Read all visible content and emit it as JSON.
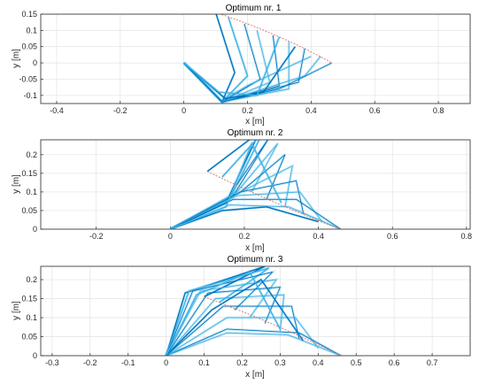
{
  "colors": {
    "background": "#ffffff",
    "axes_frame": "#262626",
    "grid": "#e3e3e3",
    "links": "#0072bd",
    "light_links": "#3fb4e6",
    "path": "#e07060"
  },
  "chart_data": [
    {
      "type": "line",
      "title": "Optimum nr. 1",
      "xlabel": "x [m]",
      "ylabel": "y [m]",
      "xlim": [
        -0.45,
        0.9
      ],
      "ylim": [
        -0.125,
        0.15
      ],
      "xticks": [
        -0.4,
        -0.2,
        0,
        0.2,
        0.4,
        0.6,
        0.8
      ],
      "xtick_labels": [
        "-0.4",
        "-0.2",
        "0",
        "0.2",
        "0.4",
        "0.6",
        "0.8"
      ],
      "yticks": [
        0.15,
        0.1,
        0.05,
        0,
        -0.05,
        -0.1
      ],
      "ytick_labels": [
        "0.15",
        "0.1",
        "0.05",
        "0",
        "-0.05",
        "-0.1"
      ],
      "grid": true,
      "path": {
        "start": [
          0.1,
          0.155
        ],
        "end": [
          0.465,
          0.0
        ],
        "ctrl": [
          0.3,
          0.09
        ]
      },
      "polylines": [
        [
          [
            0.0,
            0.0
          ],
          [
            0.12,
            -0.12
          ],
          [
            0.16,
            -0.03
          ],
          [
            0.1,
            0.155
          ]
        ],
        [
          [
            0.0,
            0.0
          ],
          [
            0.12,
            -0.12
          ],
          [
            0.2,
            -0.04
          ],
          [
            0.14,
            0.14
          ]
        ],
        [
          [
            0.0,
            0.0
          ],
          [
            0.12,
            -0.12
          ],
          [
            0.24,
            -0.05
          ],
          [
            0.19,
            0.12
          ]
        ],
        [
          [
            0.0,
            0.0
          ],
          [
            0.12,
            -0.12
          ],
          [
            0.27,
            -0.06
          ],
          [
            0.23,
            0.1
          ]
        ],
        [
          [
            0.0,
            0.0
          ],
          [
            0.12,
            -0.12
          ],
          [
            0.3,
            -0.07
          ],
          [
            0.28,
            0.085
          ]
        ],
        [
          [
            0.0,
            0.0
          ],
          [
            0.12,
            -0.12
          ],
          [
            0.33,
            -0.08
          ],
          [
            0.33,
            0.065
          ]
        ],
        [
          [
            0.0,
            0.0
          ],
          [
            0.12,
            -0.12
          ],
          [
            0.36,
            -0.06
          ],
          [
            0.38,
            0.045
          ]
        ],
        [
          [
            0.0,
            0.0
          ],
          [
            0.12,
            -0.12
          ],
          [
            0.38,
            -0.04
          ],
          [
            0.43,
            0.02
          ]
        ],
        [
          [
            0.0,
            0.0
          ],
          [
            0.12,
            -0.12
          ],
          [
            0.3,
            -0.08
          ],
          [
            0.465,
            0.0
          ]
        ],
        [
          [
            0.0,
            0.0
          ],
          [
            0.13,
            -0.11
          ],
          [
            0.2,
            -0.07
          ],
          [
            0.4,
            0.02
          ]
        ],
        [
          [
            0.0,
            0.0
          ],
          [
            0.13,
            -0.11
          ],
          [
            0.25,
            -0.09
          ],
          [
            0.35,
            0.05
          ]
        ],
        [
          [
            0.0,
            0.0
          ],
          [
            0.11,
            -0.09
          ],
          [
            0.23,
            -0.1
          ],
          [
            0.3,
            0.08
          ]
        ]
      ]
    },
    {
      "type": "line",
      "title": "Optimum nr. 2",
      "xlabel": "x [m]",
      "ylabel": "y [m]",
      "xlim": [
        -0.35,
        0.81
      ],
      "ylim": [
        0,
        0.24
      ],
      "xticks": [
        -0.2,
        0,
        0.2,
        0.4,
        0.6,
        0.8
      ],
      "xtick_labels": [
        "-0.2",
        "0",
        "0.2",
        "0.4",
        "0.6",
        "0.8"
      ],
      "yticks": [
        0.2,
        0.15,
        0.1,
        0.05,
        0
      ],
      "ytick_labels": [
        "0.2",
        "0.15",
        "0.1",
        "0.05",
        "0"
      ],
      "grid": true,
      "path": {
        "start": [
          0.1,
          0.155
        ],
        "end": [
          0.46,
          0.0
        ],
        "ctrl": [
          0.3,
          0.06
        ]
      },
      "polylines": [
        [
          [
            0.0,
            0.0
          ],
          [
            0.15,
            0.07
          ],
          [
            0.24,
            0.26
          ],
          [
            0.1,
            0.155
          ]
        ],
        [
          [
            0.0,
            0.0
          ],
          [
            0.16,
            0.08
          ],
          [
            0.25,
            0.26
          ],
          [
            0.14,
            0.14
          ]
        ],
        [
          [
            0.0,
            0.0
          ],
          [
            0.17,
            0.09
          ],
          [
            0.27,
            0.25
          ],
          [
            0.18,
            0.12
          ]
        ],
        [
          [
            0.0,
            0.0
          ],
          [
            0.18,
            0.1
          ],
          [
            0.29,
            0.23
          ],
          [
            0.22,
            0.1
          ]
        ],
        [
          [
            0.0,
            0.0
          ],
          [
            0.19,
            0.1
          ],
          [
            0.31,
            0.2
          ],
          [
            0.26,
            0.08
          ]
        ],
        [
          [
            0.0,
            0.0
          ],
          [
            0.19,
            0.1
          ],
          [
            0.33,
            0.17
          ],
          [
            0.31,
            0.06
          ]
        ],
        [
          [
            0.0,
            0.0
          ],
          [
            0.19,
            0.1
          ],
          [
            0.34,
            0.13
          ],
          [
            0.36,
            0.04
          ]
        ],
        [
          [
            0.0,
            0.0
          ],
          [
            0.18,
            0.09
          ],
          [
            0.35,
            0.1
          ],
          [
            0.41,
            0.02
          ]
        ],
        [
          [
            0.0,
            0.0
          ],
          [
            0.17,
            0.08
          ],
          [
            0.34,
            0.08
          ],
          [
            0.46,
            0.0
          ]
        ],
        [
          [
            0.0,
            0.0
          ],
          [
            0.16,
            0.065
          ],
          [
            0.32,
            0.06
          ],
          [
            0.46,
            0.0
          ]
        ],
        [
          [
            0.0,
            0.0
          ],
          [
            0.14,
            0.05
          ],
          [
            0.26,
            0.06
          ],
          [
            0.4,
            0.02
          ]
        ],
        [
          [
            0.0,
            0.0
          ],
          [
            0.15,
            0.06
          ],
          [
            0.22,
            0.23
          ],
          [
            0.3,
            0.07
          ]
        ]
      ]
    },
    {
      "type": "line",
      "title": "Optimum nr. 3",
      "xlabel": "x [m]",
      "ylabel": "y [m]",
      "xlim": [
        -0.33,
        0.8
      ],
      "ylim": [
        0,
        0.235
      ],
      "xticks": [
        -0.3,
        -0.2,
        -0.1,
        0,
        0.1,
        0.2,
        0.3,
        0.4,
        0.5,
        0.6,
        0.7
      ],
      "xtick_labels": [
        "-0.3",
        "-0.2",
        "-0.1",
        "0",
        "0.1",
        "0.2",
        "0.3",
        "0.4",
        "0.5",
        "0.6",
        "0.7"
      ],
      "yticks": [
        0.2,
        0.15,
        0.1,
        0.05,
        0
      ],
      "ytick_labels": [
        "0.2",
        "0.15",
        "0.1",
        "0.05",
        "0"
      ],
      "grid": true,
      "path": {
        "start": [
          0.1,
          0.155
        ],
        "end": [
          0.46,
          0.0
        ],
        "ctrl": [
          0.3,
          0.08
        ]
      },
      "polylines": [
        [
          [
            0.0,
            0.0
          ],
          [
            0.05,
            0.165
          ],
          [
            0.26,
            0.235
          ],
          [
            0.1,
            0.155
          ]
        ],
        [
          [
            0.0,
            0.0
          ],
          [
            0.06,
            0.17
          ],
          [
            0.27,
            0.23
          ],
          [
            0.14,
            0.14
          ]
        ],
        [
          [
            0.0,
            0.0
          ],
          [
            0.07,
            0.17
          ],
          [
            0.28,
            0.22
          ],
          [
            0.18,
            0.12
          ]
        ],
        [
          [
            0.0,
            0.0
          ],
          [
            0.09,
            0.17
          ],
          [
            0.29,
            0.2
          ],
          [
            0.22,
            0.1
          ]
        ],
        [
          [
            0.0,
            0.0
          ],
          [
            0.11,
            0.165
          ],
          [
            0.3,
            0.18
          ],
          [
            0.26,
            0.085
          ]
        ],
        [
          [
            0.0,
            0.0
          ],
          [
            0.13,
            0.15
          ],
          [
            0.31,
            0.16
          ],
          [
            0.3,
            0.065
          ]
        ],
        [
          [
            0.0,
            0.0
          ],
          [
            0.15,
            0.13
          ],
          [
            0.33,
            0.13
          ],
          [
            0.35,
            0.045
          ]
        ],
        [
          [
            0.0,
            0.0
          ],
          [
            0.16,
            0.1
          ],
          [
            0.34,
            0.1
          ],
          [
            0.4,
            0.02
          ]
        ],
        [
          [
            0.0,
            0.0
          ],
          [
            0.16,
            0.07
          ],
          [
            0.35,
            0.06
          ],
          [
            0.46,
            0.0
          ]
        ],
        [
          [
            0.0,
            0.0
          ],
          [
            0.16,
            0.06
          ],
          [
            0.32,
            0.055
          ],
          [
            0.46,
            0.0
          ]
        ],
        [
          [
            0.0,
            0.0
          ],
          [
            0.12,
            0.12
          ],
          [
            0.25,
            0.2
          ],
          [
            0.36,
            0.04
          ]
        ],
        [
          [
            0.0,
            0.0
          ],
          [
            0.08,
            0.16
          ],
          [
            0.22,
            0.22
          ],
          [
            0.3,
            0.07
          ]
        ]
      ]
    }
  ]
}
